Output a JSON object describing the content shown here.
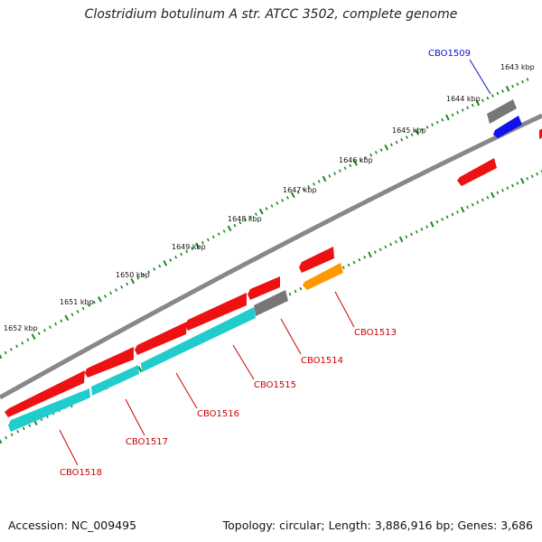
{
  "title": "Clostridium botulinum A str. ATCC 3502, complete genome",
  "footer": {
    "accession": "Accession: NC_009495",
    "stats": "Topology: circular; Length: 3,886,916 bp; Genes: 3,686"
  },
  "colors": {
    "backbone": "#888888",
    "tick": "#1a8a1a",
    "red_gene": "#ee1111",
    "cyan_gene": "#22cccc",
    "gray_gene": "#777777",
    "orange_gene": "#ff9900",
    "blue_gene": "#1111ee",
    "label_red": "#cc0000",
    "label_blue": "#1010cc"
  },
  "scale_labels": [
    {
      "text": "1643 kbp"
    },
    {
      "text": "1644 kbp"
    },
    {
      "text": "1645 kbp"
    },
    {
      "text": "1646 kbp"
    },
    {
      "text": "1647 kbp"
    },
    {
      "text": "1648 kbp"
    },
    {
      "text": "1649 kbp"
    },
    {
      "text": "1650 kbp"
    },
    {
      "text": "1651 kbp"
    },
    {
      "text": "1652 kbp"
    }
  ],
  "gene_labels": [
    {
      "text": "CBO1509",
      "color": "blue"
    },
    {
      "text": "CBO1513",
      "color": "red"
    },
    {
      "text": "CBO1514",
      "color": "red"
    },
    {
      "text": "CBO1515",
      "color": "red"
    },
    {
      "text": "CBO1516",
      "color": "red"
    },
    {
      "text": "CBO1517",
      "color": "red"
    },
    {
      "text": "CBO1518",
      "color": "red"
    }
  ]
}
